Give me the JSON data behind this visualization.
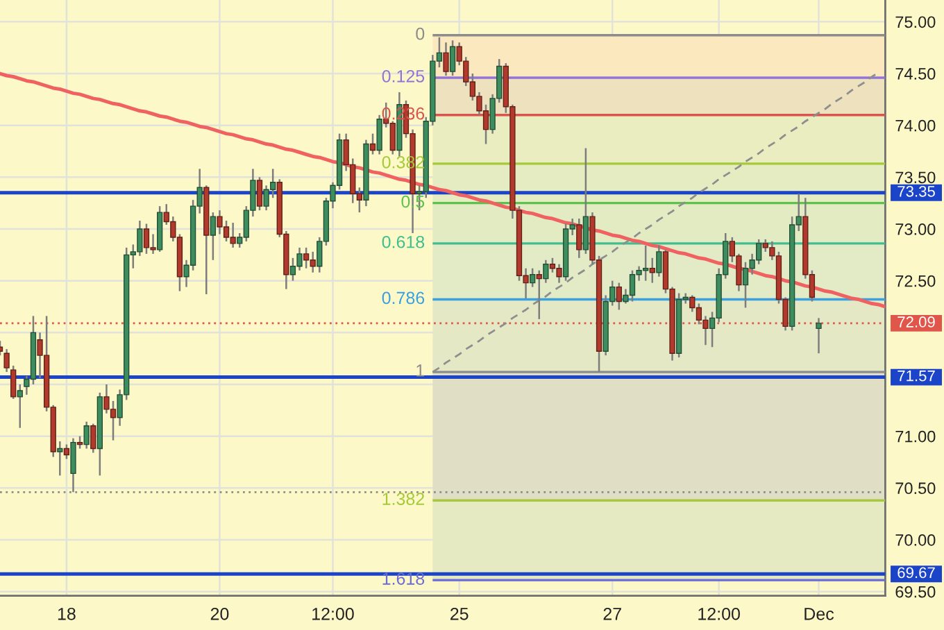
{
  "chart_data": {
    "type": "candlestick",
    "categories": [
      null,
      null,
      null,
      null,
      null,
      null,
      null,
      null,
      null,
      null,
      "18",
      null,
      null,
      null,
      null,
      null,
      null,
      null,
      null,
      null,
      null,
      null,
      null,
      null,
      null,
      null,
      null,
      null,
      null,
      null,
      null,
      null,
      null,
      "20",
      null,
      null,
      null,
      null,
      null,
      null,
      null,
      null,
      null,
      null,
      null,
      null,
      null,
      null,
      null,
      null,
      "12:00",
      null,
      null,
      null,
      null,
      null,
      null,
      null,
      null,
      null,
      null,
      null,
      null,
      null,
      null,
      null,
      null,
      null,
      null,
      "25",
      null,
      null,
      null,
      null,
      null,
      null,
      null,
      null,
      null,
      null,
      null,
      null,
      null,
      null,
      null,
      null,
      null,
      null,
      null,
      null,
      null,
      null,
      "27",
      null,
      null,
      null,
      null,
      null,
      null,
      null,
      null,
      null,
      null,
      null,
      null,
      null,
      null,
      null,
      "12:00",
      null,
      null,
      null,
      null,
      null,
      null,
      null,
      null,
      null,
      null,
      null,
      null,
      null,
      null,
      "Dec",
      null,
      null,
      null,
      null,
      null,
      null,
      null,
      null,
      null,
      null
    ],
    "ohlc": [
      [
        71.86,
        71.92,
        71.78,
        71.82
      ],
      [
        71.8,
        71.84,
        71.62,
        71.66
      ],
      [
        71.64,
        71.68,
        71.36,
        71.38
      ],
      [
        71.38,
        71.5,
        71.08,
        71.44
      ],
      [
        71.48,
        71.58,
        71.4,
        71.55
      ],
      [
        71.55,
        72.16,
        71.5,
        72.0
      ],
      [
        71.93,
        72.0,
        71.56,
        71.78
      ],
      [
        71.78,
        72.16,
        71.24,
        71.28
      ],
      [
        71.28,
        71.3,
        70.8,
        70.85
      ],
      [
        70.85,
        70.95,
        70.62,
        70.88
      ],
      [
        70.88,
        70.92,
        70.78,
        70.82
      ],
      [
        70.64,
        70.98,
        70.46,
        70.94
      ],
      [
        70.94,
        71.0,
        70.88,
        70.92
      ],
      [
        70.92,
        71.14,
        70.88,
        71.1
      ],
      [
        71.1,
        71.12,
        70.84,
        70.88
      ],
      [
        70.88,
        71.42,
        70.62,
        71.38
      ],
      [
        71.38,
        71.5,
        71.22,
        71.26
      ],
      [
        71.26,
        71.34,
        70.96,
        71.18
      ],
      [
        71.18,
        71.45,
        71.1,
        71.4
      ],
      [
        71.4,
        72.82,
        71.35,
        72.75
      ],
      [
        72.75,
        72.85,
        72.62,
        72.78
      ],
      [
        72.78,
        73.08,
        72.74,
        73.0
      ],
      [
        73.0,
        73.05,
        72.76,
        72.82
      ],
      [
        72.82,
        72.95,
        72.76,
        72.8
      ],
      [
        72.8,
        73.22,
        72.78,
        73.16
      ],
      [
        73.16,
        73.24,
        73.04,
        73.07
      ],
      [
        73.07,
        73.12,
        72.88,
        72.92
      ],
      [
        72.92,
        72.95,
        72.4,
        72.54
      ],
      [
        72.54,
        72.7,
        72.44,
        72.65
      ],
      [
        72.65,
        73.28,
        72.6,
        73.22
      ],
      [
        73.22,
        73.58,
        73.15,
        73.4
      ],
      [
        73.4,
        73.42,
        72.37,
        72.94
      ],
      [
        72.94,
        73.16,
        72.7,
        73.12
      ],
      [
        73.12,
        73.18,
        72.95,
        73.02
      ],
      [
        73.02,
        73.08,
        72.88,
        72.92
      ],
      [
        72.92,
        73.06,
        72.82,
        72.86
      ],
      [
        72.86,
        72.96,
        72.82,
        72.92
      ],
      [
        72.92,
        73.22,
        72.88,
        73.18
      ],
      [
        73.18,
        73.58,
        73.12,
        73.47
      ],
      [
        73.47,
        73.5,
        73.18,
        73.22
      ],
      [
        73.22,
        73.42,
        73.18,
        73.38
      ],
      [
        73.38,
        73.58,
        73.3,
        73.45
      ],
      [
        73.45,
        73.48,
        72.92,
        72.95
      ],
      [
        72.95,
        72.98,
        72.42,
        72.56
      ],
      [
        72.56,
        72.72,
        72.5,
        72.64
      ],
      [
        72.64,
        72.82,
        72.6,
        72.76
      ],
      [
        72.76,
        72.82,
        72.62,
        72.7
      ],
      [
        72.7,
        72.78,
        72.58,
        72.64
      ],
      [
        72.64,
        72.92,
        72.58,
        72.88
      ],
      [
        72.88,
        73.3,
        72.84,
        73.27
      ],
      [
        73.27,
        73.45,
        73.2,
        73.42
      ],
      [
        73.42,
        73.92,
        73.38,
        73.86
      ],
      [
        73.86,
        73.92,
        73.56,
        73.62
      ],
      [
        73.62,
        73.68,
        73.25,
        73.34
      ],
      [
        73.34,
        73.4,
        73.16,
        73.28
      ],
      [
        73.28,
        73.86,
        73.22,
        73.82
      ],
      [
        73.82,
        73.92,
        73.72,
        73.76
      ],
      [
        73.76,
        74.1,
        73.72,
        74.06
      ],
      [
        74.06,
        74.22,
        73.98,
        74.02
      ],
      [
        74.02,
        74.04,
        73.72,
        73.76
      ],
      [
        73.76,
        74.32,
        73.7,
        74.2
      ],
      [
        74.2,
        74.24,
        73.88,
        73.92
      ],
      [
        73.92,
        73.96,
        72.96,
        73.34
      ],
      [
        73.34,
        73.42,
        73.18,
        73.36
      ],
      [
        73.36,
        74.08,
        73.3,
        74.04
      ],
      [
        74.04,
        74.68,
        74.0,
        74.62
      ],
      [
        74.62,
        74.85,
        74.56,
        74.7
      ],
      [
        74.7,
        74.8,
        74.48,
        74.52
      ],
      [
        74.52,
        74.82,
        74.48,
        74.76
      ],
      [
        74.76,
        74.8,
        74.58,
        74.62
      ],
      [
        74.62,
        74.66,
        74.38,
        74.42
      ],
      [
        74.42,
        74.5,
        74.24,
        74.28
      ],
      [
        74.28,
        74.32,
        74.1,
        74.14
      ],
      [
        74.14,
        74.2,
        73.82,
        73.96
      ],
      [
        73.96,
        74.3,
        73.92,
        74.26
      ],
      [
        74.26,
        74.64,
        74.22,
        74.57
      ],
      [
        74.57,
        74.6,
        74.12,
        74.18
      ],
      [
        74.18,
        74.2,
        73.1,
        73.18
      ],
      [
        73.18,
        73.22,
        72.5,
        72.55
      ],
      [
        72.55,
        72.62,
        72.33,
        72.48
      ],
      [
        72.48,
        72.62,
        72.44,
        72.56
      ],
      [
        72.56,
        72.6,
        72.13,
        72.52
      ],
      [
        72.52,
        72.7,
        72.48,
        72.66
      ],
      [
        72.66,
        72.72,
        72.58,
        72.62
      ],
      [
        72.62,
        72.66,
        72.48,
        72.54
      ],
      [
        72.54,
        73.05,
        72.5,
        73.0
      ],
      [
        73.0,
        73.1,
        72.94,
        73.04
      ],
      [
        73.04,
        73.1,
        72.72,
        72.8
      ],
      [
        72.8,
        73.78,
        72.76,
        73.12
      ],
      [
        73.12,
        73.16,
        72.66,
        72.7
      ],
      [
        72.7,
        72.74,
        71.62,
        71.82
      ],
      [
        71.82,
        72.36,
        71.78,
        72.3
      ],
      [
        72.3,
        72.5,
        72.26,
        72.44
      ],
      [
        72.44,
        72.48,
        72.22,
        72.3
      ],
      [
        72.3,
        72.42,
        72.28,
        72.36
      ],
      [
        72.36,
        72.6,
        72.3,
        72.56
      ],
      [
        72.56,
        72.64,
        72.5,
        72.6
      ],
      [
        72.6,
        72.84,
        72.5,
        72.62
      ],
      [
        72.62,
        72.72,
        72.48,
        72.58
      ],
      [
        72.58,
        72.84,
        72.54,
        72.78
      ],
      [
        72.78,
        72.8,
        72.38,
        72.42
      ],
      [
        72.42,
        72.44,
        71.73,
        71.8
      ],
      [
        71.8,
        72.38,
        71.76,
        72.32
      ],
      [
        72.32,
        72.38,
        72.28,
        72.34
      ],
      [
        72.34,
        72.36,
        72.2,
        72.24
      ],
      [
        72.24,
        72.28,
        72.08,
        72.12
      ],
      [
        72.12,
        72.16,
        71.88,
        72.04
      ],
      [
        72.04,
        72.2,
        71.86,
        72.14
      ],
      [
        72.14,
        72.62,
        72.1,
        72.56
      ],
      [
        72.56,
        72.96,
        72.52,
        72.88
      ],
      [
        72.88,
        72.92,
        72.68,
        72.74
      ],
      [
        72.74,
        72.76,
        72.4,
        72.46
      ],
      [
        72.46,
        72.68,
        72.24,
        72.62
      ],
      [
        72.62,
        72.76,
        72.56,
        72.7
      ],
      [
        72.7,
        72.9,
        72.66,
        72.86
      ],
      [
        72.86,
        72.9,
        72.78,
        72.82
      ],
      [
        72.82,
        72.88,
        72.7,
        72.74
      ],
      [
        72.74,
        72.78,
        72.28,
        72.32
      ],
      [
        72.32,
        72.34,
        72.02,
        72.06
      ],
      [
        72.06,
        73.12,
        72.02,
        73.04
      ],
      [
        73.04,
        73.34,
        72.98,
        73.12
      ],
      [
        73.12,
        73.3,
        72.52,
        72.56
      ],
      [
        72.56,
        72.6,
        72.3,
        72.34
      ],
      [
        72.04,
        72.14,
        71.8,
        72.09
      ],
      null,
      null,
      null,
      null,
      null,
      null,
      null,
      null,
      null,
      null
    ],
    "colors": [
      "#b23a2c",
      "#b23a2c",
      "#b23a2c",
      "#3e8d5e",
      "#3e8d5e",
      "#3e8d5e",
      "#b23a2c",
      "#b23a2c",
      "#b23a2c",
      "#3e8d5e",
      "#b23a2c",
      "#3e8d5e",
      "#b23a2c",
      "#3e8d5e",
      "#b23a2c",
      "#3e8d5e",
      "#b23a2c",
      "#b23a2c",
      "#3e8d5e",
      "#3e8d5e",
      "#3e8d5e",
      "#3e8d5e",
      "#b23a2c",
      "#b23a2c",
      "#3e8d5e",
      "#b23a2c",
      "#b23a2c",
      "#b23a2c",
      "#3e8d5e",
      "#3e8d5e",
      "#3e8d5e",
      "#b23a2c",
      "#3e8d5e",
      "#b23a2c",
      "#b23a2c",
      "#b23a2c",
      "#3e8d5e",
      "#3e8d5e",
      "#3e8d5e",
      "#b23a2c",
      "#3e8d5e",
      "#3e8d5e",
      "#b23a2c",
      "#b23a2c",
      "#3e8d5e",
      "#3e8d5e",
      "#b23a2c",
      "#b23a2c",
      "#3e8d5e",
      "#3e8d5e",
      "#3e8d5e",
      "#3e8d5e",
      "#b23a2c",
      "#b23a2c",
      "#b23a2c",
      "#3e8d5e",
      "#b23a2c",
      "#3e8d5e",
      "#b23a2c",
      "#b23a2c",
      "#3e8d5e",
      "#b23a2c",
      "#b23a2c",
      "#3e8d5e",
      "#3e8d5e",
      "#3e8d5e",
      "#3e8d5e",
      "#b23a2c",
      "#3e8d5e",
      "#b23a2c",
      "#b23a2c",
      "#b23a2c",
      "#b23a2c",
      "#b23a2c",
      "#3e8d5e",
      "#3e8d5e",
      "#b23a2c",
      "#b23a2c",
      "#b23a2c",
      "#b23a2c",
      "#3e8d5e",
      "#b23a2c",
      "#3e8d5e",
      "#b23a2c",
      "#b23a2c",
      "#3e8d5e",
      "#3e8d5e",
      "#b23a2c",
      "#3e8d5e",
      "#b23a2c",
      "#b23a2c",
      "#3e8d5e",
      "#3e8d5e",
      "#b23a2c",
      "#3e8d5e",
      "#3e8d5e",
      "#3e8d5e",
      "#3e8d5e",
      "#b23a2c",
      "#3e8d5e",
      "#b23a2c",
      "#b23a2c",
      "#3e8d5e",
      "#3e8d5e",
      "#b23a2c",
      "#b23a2c",
      "#b23a2c",
      "#3e8d5e",
      "#3e8d5e",
      "#3e8d5e",
      "#b23a2c",
      "#b23a2c",
      "#3e8d5e",
      "#3e8d5e",
      "#3e8d5e",
      "#b23a2c",
      "#b23a2c",
      "#b23a2c",
      "#b23a2c",
      "#3e8d5e",
      "#3e8d5e",
      "#b23a2c",
      "#b23a2c",
      "#3e8d5e",
      null,
      null,
      null,
      null,
      null,
      null,
      null,
      null,
      null,
      null
    ],
    "series": [
      {
        "type": "line",
        "color": "#f06262",
        "values": [
          74.5,
          74.48,
          74.47,
          74.45,
          74.43,
          74.42,
          74.4,
          74.38,
          74.36,
          74.35,
          74.33,
          74.31,
          74.3,
          74.28,
          74.26,
          74.25,
          74.23,
          74.21,
          74.2,
          74.18,
          74.16,
          74.14,
          74.13,
          74.11,
          74.09,
          74.08,
          74.06,
          74.04,
          74.03,
          74.01,
          73.99,
          73.98,
          73.96,
          73.94,
          73.92,
          73.91,
          73.89,
          73.87,
          73.86,
          73.84,
          73.82,
          73.81,
          73.79,
          73.77,
          73.76,
          73.74,
          73.72,
          73.7,
          73.69,
          73.67,
          73.65,
          73.64,
          73.62,
          73.6,
          73.59,
          73.57,
          73.55,
          73.54,
          73.52,
          73.5,
          73.48,
          73.47,
          73.45,
          73.43,
          73.42,
          73.4,
          73.38,
          73.37,
          73.35,
          73.33,
          73.32,
          73.3,
          73.28,
          73.27,
          73.25,
          73.23,
          73.21,
          73.2,
          73.18,
          73.16,
          73.15,
          73.13,
          73.11,
          73.1,
          73.08,
          73.06,
          73.05,
          73.03,
          73.01,
          72.99,
          72.98,
          72.96,
          72.94,
          72.93,
          72.91,
          72.89,
          72.88,
          72.86,
          72.84,
          72.83,
          72.81,
          72.79,
          72.77,
          72.76,
          72.74,
          72.72,
          72.71,
          72.69,
          72.67,
          72.66,
          72.64,
          72.62,
          72.61,
          72.59,
          72.57,
          72.55,
          72.54,
          72.52,
          72.5,
          72.49,
          72.47,
          72.45,
          72.44,
          72.42,
          72.4,
          72.39,
          72.37,
          72.35,
          72.33,
          72.32,
          72.3,
          72.28,
          72.27,
          72.25
        ]
      },
      {
        "type": "line",
        "color": "#8e8e8e",
        "line_style": "dashed",
        "values": [
          null,
          null,
          null,
          null,
          null,
          null,
          null,
          null,
          null,
          null,
          null,
          null,
          null,
          null,
          null,
          null,
          null,
          null,
          null,
          null,
          null,
          null,
          null,
          null,
          null,
          null,
          null,
          null,
          null,
          null,
          null,
          null,
          null,
          null,
          null,
          null,
          null,
          null,
          null,
          null,
          null,
          null,
          null,
          null,
          null,
          null,
          null,
          null,
          null,
          null,
          null,
          null,
          null,
          null,
          null,
          null,
          null,
          null,
          null,
          null,
          null,
          null,
          null,
          null,
          null,
          71.62,
          71.66,
          71.71,
          71.75,
          71.79,
          71.84,
          71.88,
          71.92,
          71.97,
          72.01,
          72.05,
          72.09,
          72.14,
          72.18,
          72.22,
          72.27,
          72.31,
          72.35,
          72.4,
          72.44,
          72.48,
          72.53,
          72.57,
          72.61,
          72.66,
          72.7,
          72.74,
          72.78,
          72.83,
          72.87,
          72.91,
          72.96,
          73.0,
          73.04,
          73.09,
          73.13,
          73.17,
          73.22,
          73.26,
          73.3,
          73.35,
          73.39,
          73.43,
          73.48,
          73.52,
          73.56,
          73.6,
          73.65,
          73.69,
          73.73,
          73.78,
          73.82,
          73.86,
          73.91,
          73.95,
          73.99,
          74.04,
          74.08,
          74.12,
          74.16,
          74.21,
          74.25,
          74.29,
          74.34,
          74.38,
          74.42,
          74.47,
          74.51,
          null
        ]
      }
    ],
    "ylim": [
      69.46,
      75.21
    ],
    "yticks": [
      {
        "value": 75,
        "label": "75.00"
      },
      {
        "value": 74.5,
        "label": "74.50"
      },
      {
        "value": 74,
        "label": "74.00"
      },
      {
        "value": 73.5,
        "label": "73.50"
      },
      {
        "value": 73,
        "label": "73.00"
      },
      {
        "value": 72.5,
        "label": "72.50"
      },
      {
        "value": 72,
        "label": null
      },
      {
        "value": 71.5,
        "label": null
      },
      {
        "value": 71,
        "label": "71.00"
      },
      {
        "value": 70.5,
        "label": "70.50"
      },
      {
        "value": 70,
        "label": "70.00"
      },
      {
        "value": 69.5,
        "label": "69.50"
      }
    ],
    "bands": [
      {
        "axis": "y",
        "from": 74.87,
        "to": 74.46,
        "color": "#fbe8bf"
      },
      {
        "axis": "y",
        "from": 74.46,
        "to": 74.1,
        "color": "#ede2bd"
      },
      {
        "axis": "y",
        "from": 74.1,
        "to": 73.63,
        "color": "#e9edc0"
      },
      {
        "axis": "y",
        "from": 73.63,
        "to": 73.25,
        "color": "#e5ecc1"
      },
      {
        "axis": "y",
        "from": 73.25,
        "to": 72.86,
        "color": "#e3ebc3"
      },
      {
        "axis": "y",
        "from": 72.86,
        "to": 72.32,
        "color": "#e2eac6"
      },
      {
        "axis": "y",
        "from": 72.32,
        "to": 71.62,
        "color": "#e5e8c5"
      },
      {
        "axis": "y",
        "from": 71.62,
        "to": 70.38,
        "color": "#e0dfc6"
      },
      {
        "axis": "y",
        "from": 70.38,
        "to": 69.61,
        "color": "#e6eac3"
      }
    ],
    "ref_lines": [
      {
        "axis": "y",
        "value": 74.87,
        "color": "#8c8c8c"
      },
      {
        "axis": "y",
        "value": 74.46,
        "color": "#9274d6"
      },
      {
        "axis": "y",
        "value": 74.1,
        "color": "#d9534f"
      },
      {
        "axis": "y",
        "value": 73.63,
        "color": "#a5c93a"
      },
      {
        "axis": "y",
        "value": 73.25,
        "color": "#5cc24e"
      },
      {
        "axis": "y",
        "value": 72.86,
        "color": "#3fbf8f"
      },
      {
        "axis": "y",
        "value": 72.32,
        "color": "#3aa0e0"
      },
      {
        "axis": "y",
        "value": 71.62,
        "color": "#8c8c8c"
      },
      {
        "axis": "y",
        "value": 70.38,
        "color": "#a5c93a"
      },
      {
        "axis": "y",
        "value": 69.61,
        "color": "#6b6bd6"
      },
      {
        "axis": "y",
        "value": 73.35,
        "label": "73.35",
        "color": "#1b44c8"
      },
      {
        "axis": "y",
        "value": 71.57,
        "label": "71.57",
        "color": "#1b44c8"
      },
      {
        "axis": "y",
        "value": 69.67,
        "label": "69.67",
        "color": "#1b44c8"
      },
      {
        "axis": "y",
        "value": 72.09,
        "label": "72.09",
        "color": "#e0564a",
        "line_style": "dotted"
      },
      {
        "axis": "y",
        "value": 70.46,
        "color": "#8c8c8c",
        "line_style": "dotted"
      }
    ],
    "annotations": [
      "0",
      "0.125",
      "0.236",
      "0.382",
      "0.5",
      "0.618",
      "0.786",
      "1",
      "1.382",
      "1.618"
    ],
    "grid": true
  }
}
